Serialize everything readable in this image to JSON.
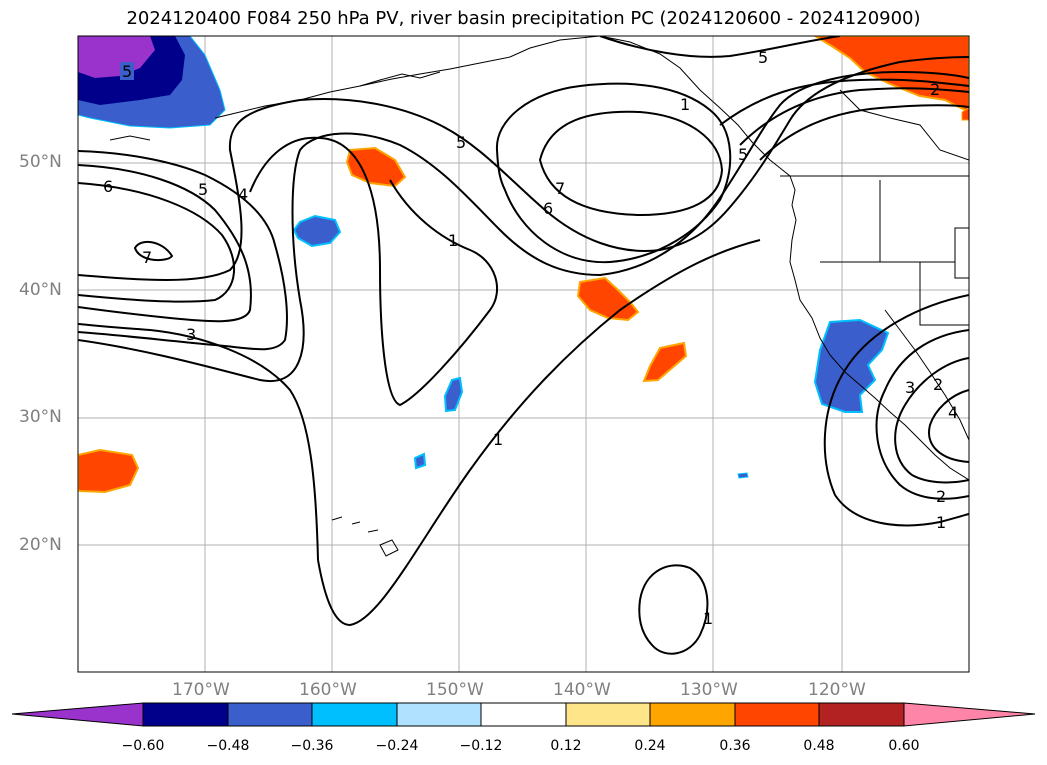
{
  "title": "2024120400 F084 250 hPa PV, river basin precipitation PC (2024120600 - 2024120900)",
  "lat_labels": [
    "50°N",
    "40°N",
    "30°N",
    "20°N"
  ],
  "lon_labels": [
    "170°W",
    "160°W",
    "150°W",
    "140°W",
    "130°W",
    "120°W"
  ],
  "colorbar": {
    "ticks": [
      "−0.60",
      "−0.48",
      "−0.36",
      "−0.24",
      "−0.12",
      "0.12",
      "0.24",
      "0.36",
      "0.48",
      "0.60"
    ],
    "colors": [
      "#9933cc",
      "#00008b",
      "#3a5fcd",
      "#00bfff",
      "#b0e2ff",
      "#ffffff",
      "#ffe58a",
      "#ffa500",
      "#ff4500",
      "#b22222",
      "#ff85a8"
    ]
  },
  "contour_labels": [
    "5",
    "5",
    "6",
    "5",
    "4",
    "7",
    "3",
    "5",
    "7",
    "6",
    "1",
    "1",
    "2",
    "5",
    "2",
    "3",
    "4",
    "2",
    "1",
    "1",
    "1"
  ]
}
